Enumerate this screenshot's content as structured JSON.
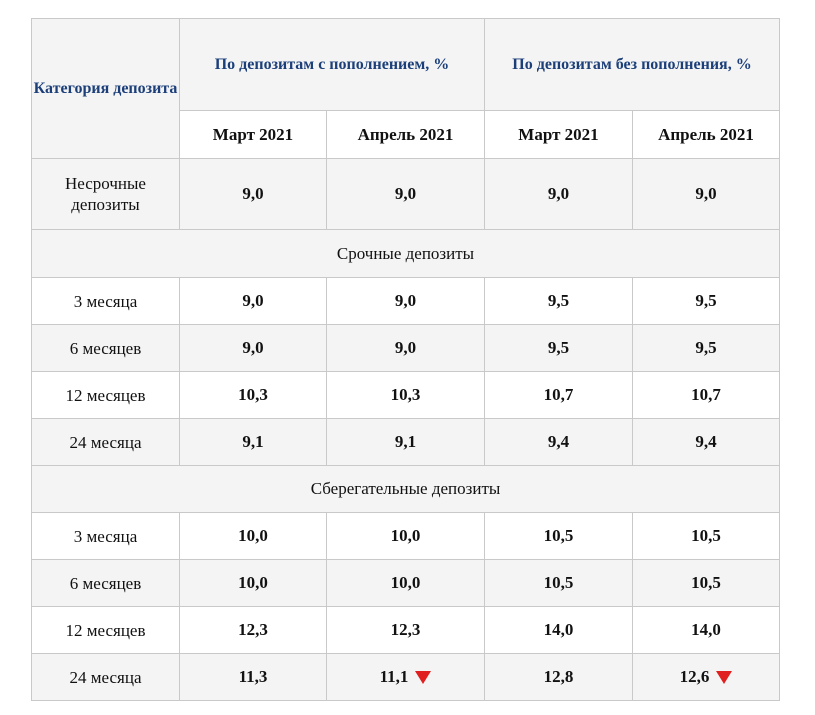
{
  "table": {
    "category_header": "Категория депозита",
    "group_with_topup": "По депозитам с пополнением, %",
    "group_without_topup": "По депозитам без пополнения, %",
    "months": [
      "Март 2021",
      "Апрель 2021",
      "Март 2021",
      "Апрель 2021"
    ],
    "rows": [
      {
        "label": "Несрочные депозиты",
        "values": [
          "9,0",
          "9,0",
          "9,0",
          "9,0"
        ]
      },
      {
        "section": "Срочные депозиты"
      },
      {
        "label": "3 месяца",
        "values": [
          "9,0",
          "9,0",
          "9,5",
          "9,5"
        ]
      },
      {
        "label": "6 месяцев",
        "values": [
          "9,0",
          "9,0",
          "9,5",
          "9,5"
        ]
      },
      {
        "label": "12 месяцев",
        "values": [
          "10,3",
          "10,3",
          "10,7",
          "10,7"
        ]
      },
      {
        "label": "24 месяца",
        "values": [
          "9,1",
          "9,1",
          "9,4",
          "9,4"
        ]
      },
      {
        "section": "Сберегательные депозиты"
      },
      {
        "label": "3 месяца",
        "values": [
          "10,0",
          "10,0",
          "10,5",
          "10,5"
        ]
      },
      {
        "label": "6 месяцев",
        "values": [
          "10,0",
          "10,0",
          "10,5",
          "10,5"
        ]
      },
      {
        "label": "12 месяцев",
        "values": [
          "12,3",
          "12,3",
          "14,0",
          "14,0"
        ]
      },
      {
        "label": "24 месяца",
        "values": [
          "11,3",
          "11,1",
          "12,8",
          "12,6"
        ],
        "decrease": [
          false,
          true,
          false,
          true
        ]
      }
    ]
  },
  "colors": {
    "header_text": "#1c3f7a",
    "decrease_arrow": "#e02020",
    "row_shade": "#f4f4f4"
  },
  "icons": {
    "decrease": "down-triangle-icon"
  }
}
